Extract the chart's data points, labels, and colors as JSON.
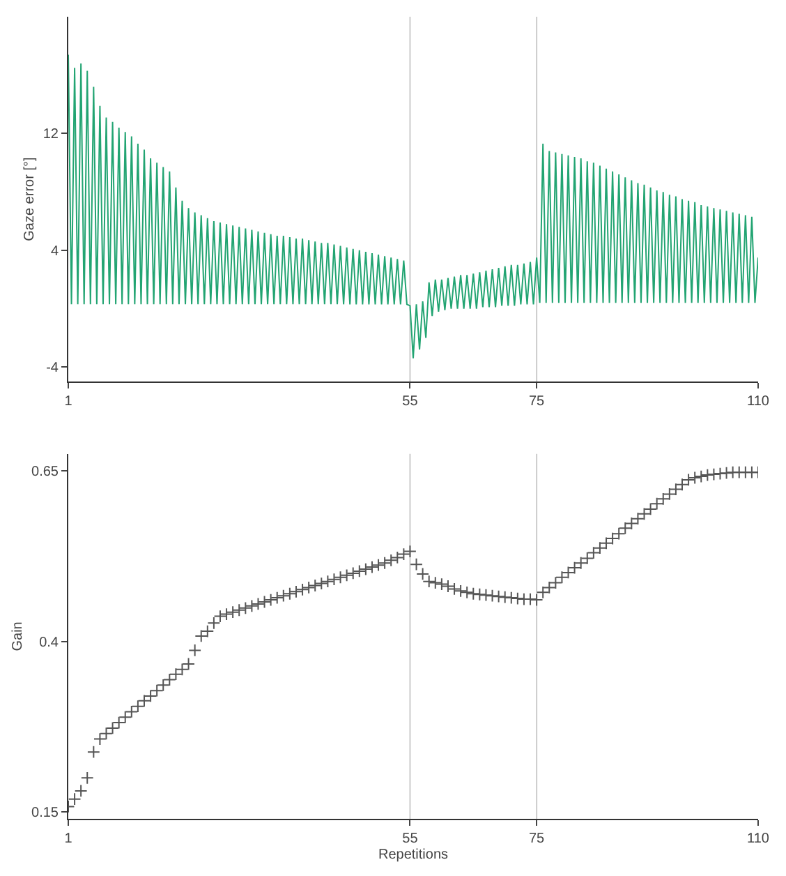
{
  "chart_data": [
    {
      "type": "line",
      "ylabel": "Gaze error [°]",
      "xlim": [
        1,
        110
      ],
      "xticks": [
        1,
        55,
        75,
        110
      ],
      "ylim": [
        -5,
        20
      ],
      "yticks": [
        -4,
        4,
        12
      ],
      "grid": false,
      "marker": "none",
      "ref_lines": [
        {
          "axis": "x",
          "value": 55,
          "color": "#cccccc"
        },
        {
          "axis": "x",
          "value": 75,
          "color": "#cccccc"
        }
      ],
      "series": [
        {
          "color": "#22a472",
          "x": [
            1,
            1.5,
            2,
            2.5,
            3,
            3.5,
            4,
            4.5,
            5,
            5.5,
            6,
            6.5,
            7,
            7.5,
            8,
            8.5,
            9,
            9.5,
            10,
            10.5,
            11,
            11.5,
            12,
            12.5,
            13,
            13.5,
            14,
            14.5,
            15,
            15.5,
            16,
            16.5,
            17,
            17.5,
            18,
            18.5,
            19,
            19.5,
            20,
            20.5,
            21,
            21.5,
            22,
            22.5,
            23,
            23.5,
            24,
            24.5,
            25,
            25.5,
            26,
            26.5,
            27,
            27.5,
            28,
            28.5,
            29,
            29.5,
            30,
            30.5,
            31,
            31.5,
            32,
            32.5,
            33,
            33.5,
            34,
            34.5,
            35,
            35.5,
            36,
            36.5,
            37,
            37.5,
            38,
            38.5,
            39,
            39.5,
            40,
            40.5,
            41,
            41.5,
            42,
            42.5,
            43,
            43.5,
            44,
            44.5,
            45,
            45.5,
            46,
            46.5,
            47,
            47.5,
            48,
            48.5,
            49,
            49.5,
            50,
            50.5,
            51,
            51.5,
            52,
            52.5,
            53,
            53.5,
            54,
            54.5,
            55,
            55.5,
            56,
            56.5,
            57,
            57.5,
            58,
            58.5,
            59,
            59.5,
            60,
            60.5,
            61,
            61.5,
            62,
            62.5,
            63,
            63.5,
            64,
            64.5,
            65,
            65.5,
            66,
            66.5,
            67,
            67.5,
            68,
            68.5,
            69,
            69.5,
            70,
            70.5,
            71,
            71.5,
            72,
            72.5,
            73,
            73.5,
            74,
            74.5,
            75,
            75.5,
            76,
            76.5,
            77,
            77.5,
            78,
            78.5,
            79,
            79.5,
            80,
            80.5,
            81,
            81.5,
            82,
            82.5,
            83,
            83.5,
            84,
            84.5,
            85,
            85.5,
            86,
            86.5,
            87,
            87.5,
            88,
            88.5,
            89,
            89.5,
            90,
            90.5,
            91,
            91.5,
            92,
            92.5,
            93,
            93.5,
            94,
            94.5,
            95,
            95.5,
            96,
            96.5,
            97,
            97.5,
            98,
            98.5,
            99,
            99.5,
            100,
            100.5,
            101,
            101.5,
            102,
            102.5,
            103,
            103.5,
            104,
            104.5,
            105,
            105.5,
            106,
            106.5,
            107,
            107.5,
            108,
            108.5,
            109,
            109.5,
            110
          ],
          "values": [
            17.4,
            0.3,
            16.5,
            0.3,
            16.8,
            0.3,
            16.3,
            0.3,
            15.2,
            0.3,
            13.9,
            0.3,
            13.1,
            0.3,
            12.8,
            0.3,
            12.4,
            0.3,
            12.1,
            0.3,
            11.8,
            0.3,
            11.3,
            0.3,
            10.9,
            0.3,
            10.3,
            0.3,
            10.0,
            0.3,
            9.7,
            0.3,
            9.4,
            0.3,
            8.3,
            0.3,
            7.4,
            0.3,
            6.9,
            0.3,
            6.6,
            0.3,
            6.4,
            0.3,
            6.2,
            0.3,
            6.0,
            0.3,
            5.9,
            0.3,
            5.8,
            0.3,
            5.7,
            0.3,
            5.6,
            0.3,
            5.5,
            0.3,
            5.4,
            0.3,
            5.3,
            0.3,
            5.2,
            0.3,
            5.1,
            0.3,
            5.0,
            0.3,
            5.0,
            0.3,
            4.9,
            0.3,
            4.8,
            0.3,
            4.8,
            0.3,
            4.7,
            0.3,
            4.6,
            0.3,
            4.5,
            0.3,
            4.5,
            0.3,
            4.4,
            0.3,
            4.3,
            0.3,
            4.2,
            0.3,
            4.1,
            0.3,
            4.0,
            0.3,
            3.9,
            0.3,
            3.8,
            0.3,
            3.7,
            0.3,
            3.6,
            0.3,
            3.5,
            0.3,
            3.4,
            0.3,
            3.3,
            0.3,
            0.2,
            -3.4,
            0.3,
            -2.8,
            0.5,
            -2.0,
            1.8,
            -0.5,
            2.0,
            -0.2,
            2.0,
            -0.1,
            2.1,
            0,
            2.2,
            0,
            2.3,
            0,
            2.3,
            0,
            2.4,
            0,
            2.5,
            0.1,
            2.6,
            0.1,
            2.7,
            0.1,
            2.8,
            0.2,
            2.9,
            0.2,
            3.0,
            0.2,
            3.0,
            0.3,
            3.1,
            0.3,
            3.2,
            0.3,
            3.5,
            0.4,
            11.3,
            0.4,
            10.8,
            0.4,
            10.7,
            0.4,
            10.6,
            0.4,
            10.5,
            0.4,
            10.4,
            0.4,
            10.3,
            0.4,
            10.1,
            0.4,
            10.0,
            0.4,
            9.8,
            0.4,
            9.6,
            0.4,
            9.4,
            0.4,
            9.2,
            0.4,
            9.0,
            0.4,
            8.8,
            0.4,
            8.6,
            0.4,
            8.5,
            0.4,
            8.3,
            0.4,
            8.1,
            0.4,
            8.0,
            0.4,
            7.8,
            0.4,
            7.7,
            0.4,
            7.5,
            0.4,
            7.4,
            0.4,
            7.3,
            0.4,
            7.1,
            0.4,
            7.0,
            0.4,
            6.9,
            0.4,
            6.8,
            0.4,
            6.7,
            0.4,
            6.6,
            0.4,
            6.5,
            0.4,
            6.4,
            0.4,
            6.3,
            0.4,
            3.5
          ]
        }
      ]
    },
    {
      "type": "scatter",
      "xlabel": "Repetitions",
      "ylabel": "Gain",
      "xlim": [
        1,
        110
      ],
      "xticks": [
        1,
        55,
        75,
        110
      ],
      "ylim": [
        0.14,
        0.675
      ],
      "yticks": [
        0.15,
        0.4,
        0.65
      ],
      "grid": false,
      "marker": "cross",
      "ref_lines": [
        {
          "axis": "x",
          "value": 55,
          "color": "#cccccc"
        },
        {
          "axis": "x",
          "value": 75,
          "color": "#cccccc"
        }
      ],
      "series": [
        {
          "color": "#555555",
          "x": [
            1,
            2,
            3,
            4,
            5,
            6,
            7,
            8,
            9,
            10,
            11,
            12,
            13,
            14,
            15,
            16,
            17,
            18,
            19,
            20,
            21,
            22,
            23,
            24,
            25,
            26,
            27,
            28,
            29,
            30,
            31,
            32,
            33,
            34,
            35,
            36,
            37,
            38,
            39,
            40,
            41,
            42,
            43,
            44,
            45,
            46,
            47,
            48,
            49,
            50,
            51,
            52,
            53,
            54,
            55,
            56,
            57,
            58,
            59,
            60,
            61,
            62,
            63,
            64,
            65,
            66,
            67,
            68,
            69,
            70,
            71,
            72,
            73,
            74,
            75,
            76,
            77,
            78,
            79,
            80,
            81,
            82,
            83,
            84,
            85,
            86,
            87,
            88,
            89,
            90,
            91,
            92,
            93,
            94,
            95,
            96,
            97,
            98,
            99,
            100,
            101,
            102,
            103,
            104,
            105,
            106,
            107,
            108,
            109,
            110
          ],
          "values": [
            0.158,
            0.169,
            0.181,
            0.2,
            0.238,
            0.257,
            0.265,
            0.273,
            0.281,
            0.289,
            0.297,
            0.305,
            0.313,
            0.32,
            0.328,
            0.336,
            0.344,
            0.352,
            0.359,
            0.367,
            0.387,
            0.408,
            0.415,
            0.427,
            0.437,
            0.44,
            0.443,
            0.446,
            0.449,
            0.452,
            0.455,
            0.458,
            0.461,
            0.464,
            0.467,
            0.47,
            0.473,
            0.476,
            0.479,
            0.482,
            0.485,
            0.488,
            0.491,
            0.494,
            0.497,
            0.5,
            0.503,
            0.506,
            0.509,
            0.512,
            0.515,
            0.519,
            0.523,
            0.528,
            0.532,
            0.513,
            0.499,
            0.488,
            0.486,
            0.484,
            0.481,
            0.477,
            0.474,
            0.472,
            0.47,
            0.469,
            0.468,
            0.467,
            0.466,
            0.465,
            0.464,
            0.463,
            0.462,
            0.462,
            0.461,
            0.472,
            0.479,
            0.486,
            0.494,
            0.501,
            0.508,
            0.515,
            0.522,
            0.53,
            0.537,
            0.544,
            0.551,
            0.558,
            0.566,
            0.573,
            0.58,
            0.587,
            0.594,
            0.602,
            0.609,
            0.616,
            0.623,
            0.63,
            0.637,
            0.64,
            0.642,
            0.644,
            0.645,
            0.646,
            0.647,
            0.648,
            0.648,
            0.648,
            0.648,
            0.648
          ]
        }
      ]
    }
  ]
}
